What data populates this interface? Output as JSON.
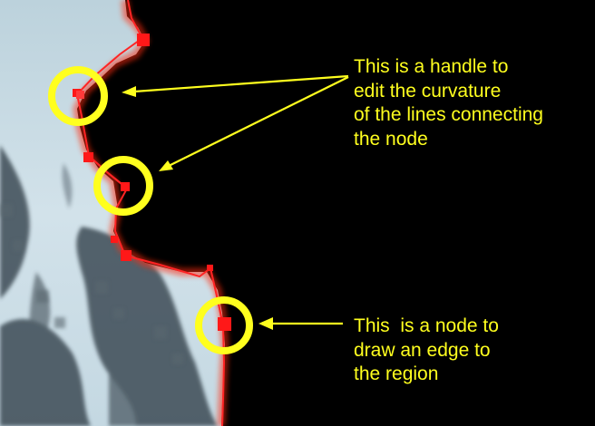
{
  "annotations": {
    "handle_note": {
      "lines": [
        "This is a handle to",
        "edit the curvature",
        "of the lines connecting",
        "the node"
      ]
    },
    "node_note": {
      "lines": [
        "This  is a node to",
        "draw an edge to",
        "the region"
      ]
    }
  },
  "colors": {
    "background": "#000000",
    "annotation": "#ffff1e",
    "path": "#ff2020",
    "sky": "#c8dce6",
    "foliage": "#3c4a52"
  },
  "icons": [
    "highlight-circle-icon",
    "arrow-icon",
    "path-node-icon"
  ]
}
